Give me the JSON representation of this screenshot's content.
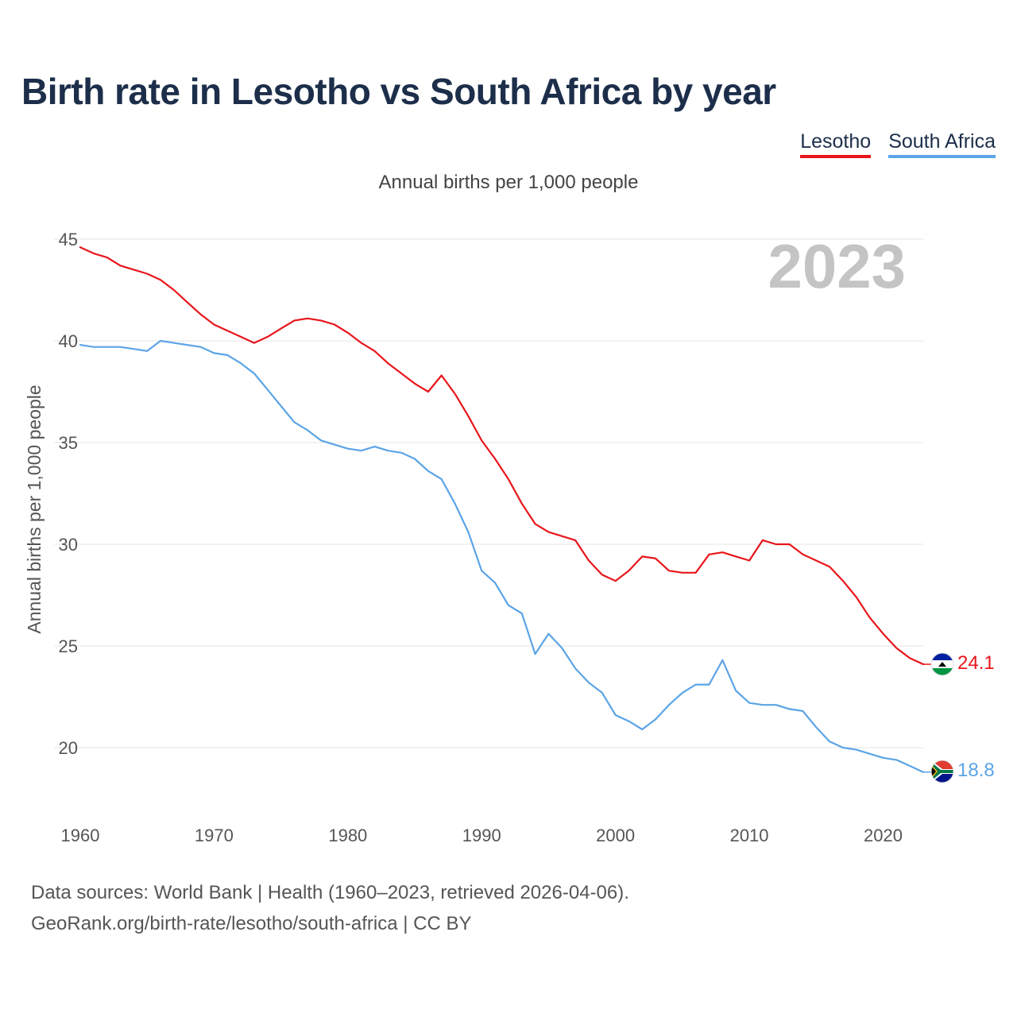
{
  "title": "Birth rate in Lesotho vs South Africa by year",
  "legend": [
    {
      "name": "Lesotho",
      "color": "#e8161b"
    },
    {
      "name": "South Africa",
      "color": "#5ba4e6"
    }
  ],
  "subtitle": "Annual births per 1,000 people",
  "source": {
    "line1": "Data sources: World Bank | Health (1960–2023, retrieved 2026-04-06).",
    "line2": "GeoRank.org/birth-rate/lesotho/south-africa | CC BY"
  },
  "chart_data": {
    "type": "line",
    "title": "Birth rate in Lesotho vs South Africa by year",
    "xlabel": "",
    "ylabel": "Annual births per 1,000 people",
    "year_label": "2023",
    "xlim": [
      1960,
      2023
    ],
    "ylim": [
      17,
      45.5
    ],
    "x_ticks": [
      1960,
      1970,
      1980,
      1990,
      2000,
      2010,
      2020
    ],
    "y_ticks": [
      20,
      25,
      30,
      35,
      40,
      45
    ],
    "grid": true,
    "legend_position": "top-right",
    "x": [
      1960,
      1961,
      1962,
      1963,
      1964,
      1965,
      1966,
      1967,
      1968,
      1969,
      1970,
      1971,
      1972,
      1973,
      1974,
      1975,
      1976,
      1977,
      1978,
      1979,
      1980,
      1981,
      1982,
      1983,
      1984,
      1985,
      1986,
      1987,
      1988,
      1989,
      1990,
      1991,
      1992,
      1993,
      1994,
      1995,
      1996,
      1997,
      1998,
      1999,
      2000,
      2001,
      2002,
      2003,
      2004,
      2005,
      2006,
      2007,
      2008,
      2009,
      2010,
      2011,
      2012,
      2013,
      2014,
      2015,
      2016,
      2017,
      2018,
      2019,
      2020,
      2021,
      2022,
      2023
    ],
    "series": [
      {
        "name": "Lesotho",
        "color": "#e8161b",
        "end_label": "24.1",
        "values": [
          44.6,
          44.3,
          44.1,
          43.7,
          43.5,
          43.3,
          43.0,
          42.5,
          41.9,
          41.3,
          40.8,
          40.5,
          40.2,
          39.9,
          40.2,
          40.6,
          41.0,
          41.1,
          41.0,
          40.8,
          40.4,
          39.9,
          39.5,
          38.9,
          38.4,
          37.9,
          37.5,
          38.3,
          37.4,
          36.3,
          35.1,
          34.2,
          33.2,
          32.0,
          31.0,
          30.6,
          30.4,
          30.2,
          29.2,
          28.5,
          28.2,
          28.7,
          29.4,
          29.3,
          28.7,
          28.6,
          28.6,
          29.5,
          29.6,
          29.4,
          29.2,
          30.2,
          30.0,
          30.0,
          29.5,
          29.2,
          28.9,
          28.2,
          27.4,
          26.4,
          25.6,
          24.9,
          24.4,
          24.1
        ]
      },
      {
        "name": "South Africa",
        "color": "#5ba4e6",
        "end_label": "18.8",
        "values": [
          39.8,
          39.7,
          39.7,
          39.7,
          39.6,
          39.5,
          40.0,
          39.9,
          39.8,
          39.7,
          39.4,
          39.3,
          38.9,
          38.4,
          37.6,
          36.8,
          36.0,
          35.6,
          35.1,
          34.9,
          34.7,
          34.6,
          34.8,
          34.6,
          34.5,
          34.2,
          33.6,
          33.2,
          32.0,
          30.6,
          28.7,
          28.1,
          27.0,
          26.6,
          24.6,
          25.6,
          24.9,
          23.9,
          23.2,
          22.7,
          21.6,
          21.3,
          20.9,
          21.4,
          22.1,
          22.7,
          23.1,
          23.1,
          24.3,
          22.8,
          22.2,
          22.1,
          22.1,
          21.9,
          21.8,
          21.0,
          20.3,
          20.0,
          19.9,
          19.7,
          19.5,
          19.4,
          19.1,
          18.8
        ]
      }
    ]
  }
}
